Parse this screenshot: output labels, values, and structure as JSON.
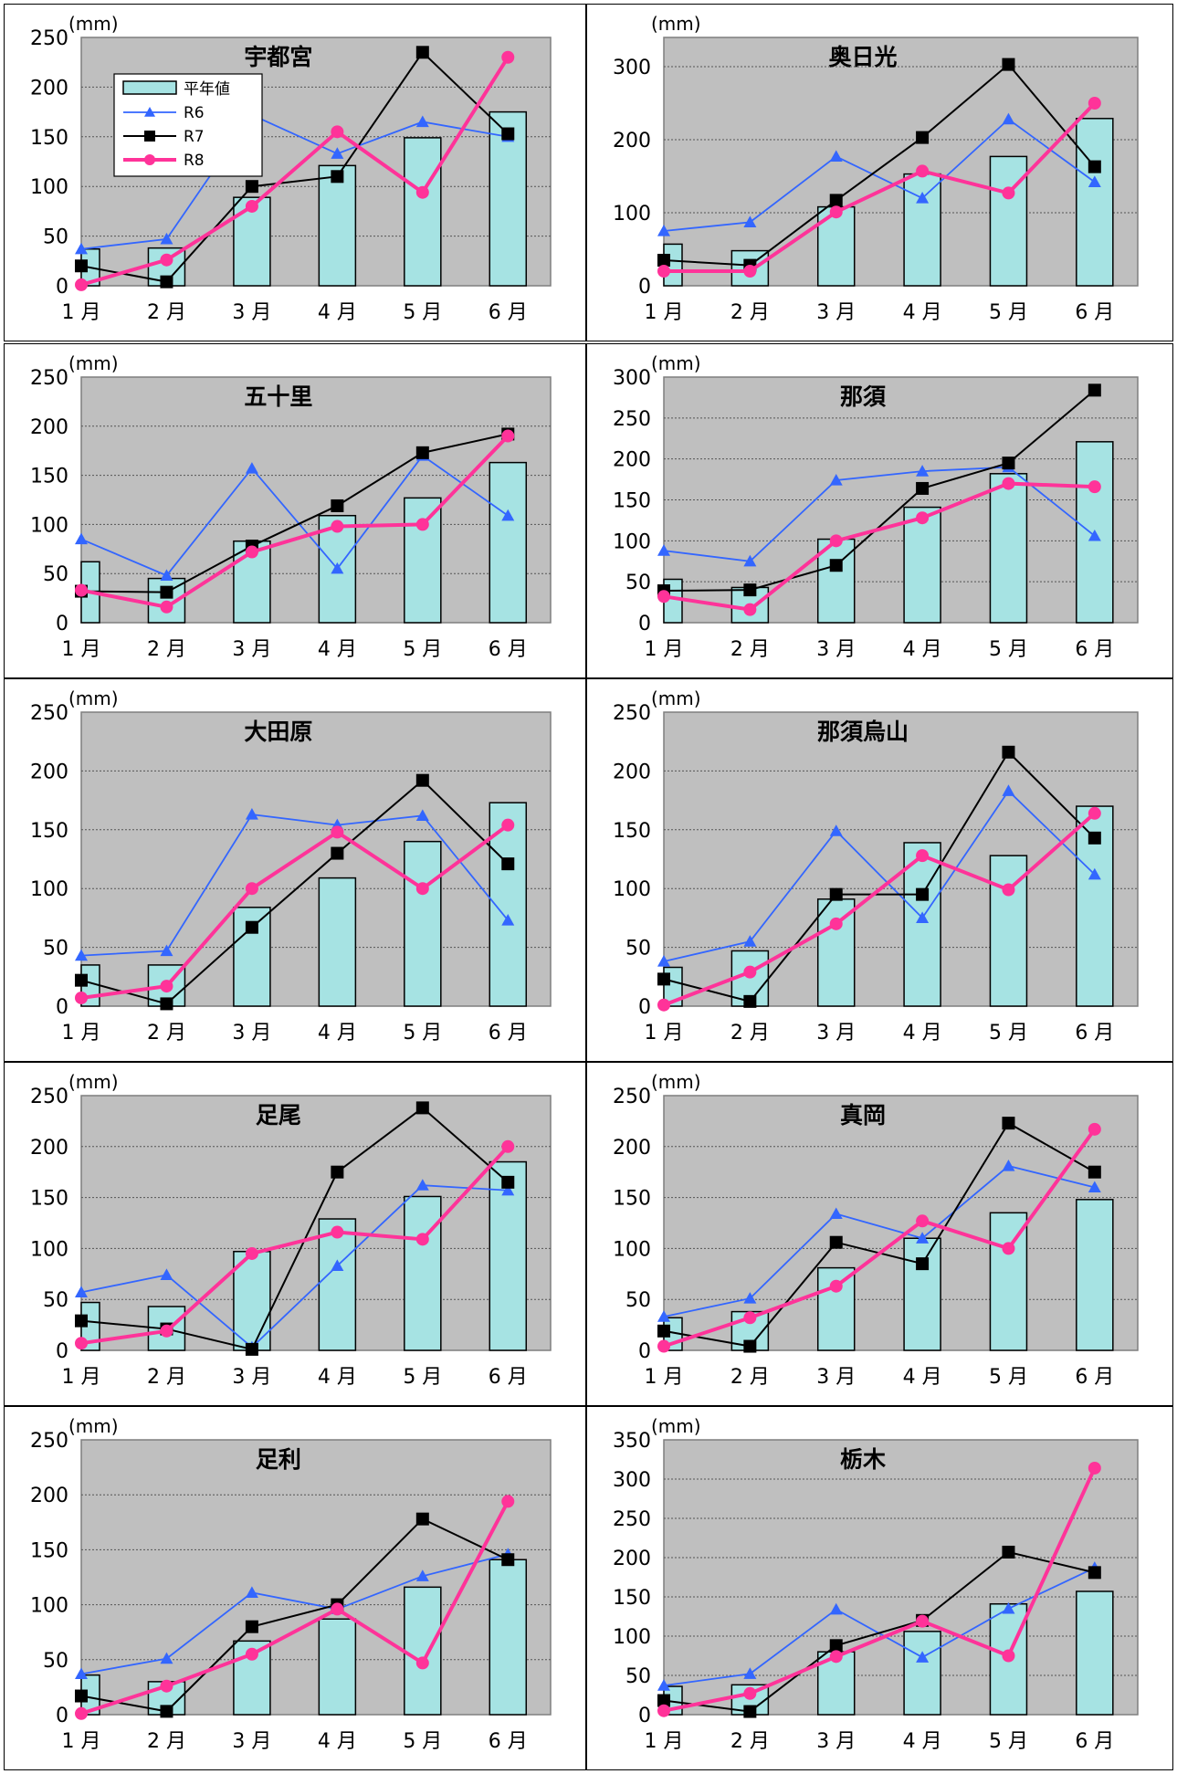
{
  "unit_label": "(mm)",
  "legend": {
    "avg": "平年値",
    "r6": "R6",
    "r7": "R7",
    "r8": "R8"
  },
  "colors": {
    "avg_fill": "#a6e3e3",
    "r6": "#3366ff",
    "r7": "#000000",
    "r8": "#ff3399",
    "plot_bg": "#bfbfbf"
  },
  "chart_data": [
    {
      "type": "bar",
      "title": "宇都宮",
      "categories": [
        "1 月",
        "2 月",
        "3 月",
        "4 月",
        "5 月",
        "6 月"
      ],
      "ylim": [
        0,
        250
      ],
      "yticks": [
        0,
        50,
        100,
        150,
        200,
        250
      ],
      "series": [
        {
          "name": "平年値",
          "kind": "bar",
          "values": [
            37,
            38,
            89,
            121,
            149,
            175
          ]
        },
        {
          "name": "R6",
          "kind": "line",
          "marker": "triangle",
          "values": [
            37,
            47,
            172,
            133,
            165,
            150
          ]
        },
        {
          "name": "R7",
          "kind": "line",
          "marker": "square",
          "values": [
            20,
            4,
            100,
            110,
            235,
            153
          ]
        },
        {
          "name": "R8",
          "kind": "line",
          "marker": "circle",
          "values": [
            1,
            26,
            80,
            155,
            94,
            230
          ]
        }
      ]
    },
    {
      "type": "bar",
      "title": "奥日光",
      "categories": [
        "1 月",
        "2 月",
        "3 月",
        "4 月",
        "5 月",
        "6 月"
      ],
      "ylim": [
        0,
        340
      ],
      "yticks": [
        0,
        100,
        200,
        300
      ],
      "series": [
        {
          "name": "平年値",
          "kind": "bar",
          "values": [
            57,
            48,
            108,
            153,
            177,
            229
          ]
        },
        {
          "name": "R6",
          "kind": "line",
          "marker": "triangle",
          "values": [
            75,
            87,
            177,
            120,
            228,
            142
          ]
        },
        {
          "name": "R7",
          "kind": "line",
          "marker": "square",
          "values": [
            35,
            28,
            117,
            203,
            303,
            163
          ]
        },
        {
          "name": "R8",
          "kind": "line",
          "marker": "circle",
          "values": [
            20,
            20,
            101,
            157,
            127,
            250
          ]
        }
      ]
    },
    {
      "type": "bar",
      "title": "五十里",
      "categories": [
        "1 月",
        "2 月",
        "3 月",
        "4 月",
        "5 月",
        "6 月"
      ],
      "ylim": [
        0,
        250
      ],
      "yticks": [
        0,
        50,
        100,
        150,
        200,
        250
      ],
      "series": [
        {
          "name": "平年値",
          "kind": "bar",
          "values": [
            62,
            45,
            83,
            109,
            127,
            163
          ]
        },
        {
          "name": "R6",
          "kind": "line",
          "marker": "triangle",
          "values": [
            85,
            48,
            157,
            55,
            170,
            109
          ]
        },
        {
          "name": "R7",
          "kind": "line",
          "marker": "square",
          "values": [
            32,
            31,
            78,
            119,
            173,
            192
          ]
        },
        {
          "name": "R8",
          "kind": "line",
          "marker": "circle",
          "values": [
            33,
            16,
            72,
            98,
            100,
            190
          ]
        }
      ]
    },
    {
      "type": "bar",
      "title": "那須",
      "categories": [
        "1 月",
        "2 月",
        "3 月",
        "4 月",
        "5 月",
        "6 月"
      ],
      "ylim": [
        0,
        300
      ],
      "yticks": [
        0,
        50,
        100,
        150,
        200,
        250,
        300
      ],
      "series": [
        {
          "name": "平年値",
          "kind": "bar",
          "values": [
            53,
            43,
            102,
            141,
            182,
            221
          ]
        },
        {
          "name": "R6",
          "kind": "line",
          "marker": "triangle",
          "values": [
            88,
            75,
            174,
            185,
            190,
            106
          ]
        },
        {
          "name": "R7",
          "kind": "line",
          "marker": "square",
          "values": [
            39,
            40,
            70,
            164,
            195,
            284
          ]
        },
        {
          "name": "R8",
          "kind": "line",
          "marker": "circle",
          "values": [
            32,
            16,
            100,
            128,
            170,
            166
          ]
        }
      ]
    },
    {
      "type": "bar",
      "title": "大田原",
      "categories": [
        "1 月",
        "2 月",
        "3 月",
        "4 月",
        "5 月",
        "6 月"
      ],
      "ylim": [
        0,
        250
      ],
      "yticks": [
        0,
        50,
        100,
        150,
        200,
        250
      ],
      "series": [
        {
          "name": "平年値",
          "kind": "bar",
          "values": [
            35,
            35,
            84,
            109,
            140,
            173
          ]
        },
        {
          "name": "R6",
          "kind": "line",
          "marker": "triangle",
          "values": [
            43,
            47,
            163,
            154,
            162,
            73
          ]
        },
        {
          "name": "R7",
          "kind": "line",
          "marker": "square",
          "values": [
            22,
            2,
            67,
            130,
            192,
            121
          ]
        },
        {
          "name": "R8",
          "kind": "line",
          "marker": "circle",
          "values": [
            7,
            17,
            100,
            148,
            100,
            154
          ]
        }
      ]
    },
    {
      "type": "bar",
      "title": "那須烏山",
      "categories": [
        "1 月",
        "2 月",
        "3 月",
        "4 月",
        "5 月",
        "6 月"
      ],
      "ylim": [
        0,
        250
      ],
      "yticks": [
        0,
        50,
        100,
        150,
        200,
        250
      ],
      "series": [
        {
          "name": "平年値",
          "kind": "bar",
          "values": [
            33,
            47,
            91,
            139,
            128,
            170
          ]
        },
        {
          "name": "R6",
          "kind": "line",
          "marker": "triangle",
          "values": [
            38,
            55,
            149,
            75,
            183,
            112
          ]
        },
        {
          "name": "R7",
          "kind": "line",
          "marker": "square",
          "values": [
            23,
            4,
            95,
            95,
            216,
            143
          ]
        },
        {
          "name": "R8",
          "kind": "line",
          "marker": "circle",
          "values": [
            1,
            29,
            70,
            128,
            99,
            164
          ]
        }
      ]
    },
    {
      "type": "bar",
      "title": "足尾",
      "categories": [
        "1 月",
        "2 月",
        "3 月",
        "4 月",
        "5 月",
        "6 月"
      ],
      "ylim": [
        0,
        250
      ],
      "yticks": [
        0,
        50,
        100,
        150,
        200,
        250
      ],
      "series": [
        {
          "name": "平年値",
          "kind": "bar",
          "values": [
            47,
            43,
            97,
            129,
            151,
            185
          ]
        },
        {
          "name": "R6",
          "kind": "line",
          "marker": "triangle",
          "values": [
            57,
            74,
            3,
            83,
            162,
            157
          ]
        },
        {
          "name": "R7",
          "kind": "line",
          "marker": "square",
          "values": [
            29,
            21,
            1,
            175,
            238,
            165
          ]
        },
        {
          "name": "R8",
          "kind": "line",
          "marker": "circle",
          "values": [
            7,
            19,
            95,
            116,
            109,
            200
          ]
        }
      ]
    },
    {
      "type": "bar",
      "title": "真岡",
      "categories": [
        "1 月",
        "2 月",
        "3 月",
        "4 月",
        "5 月",
        "6 月"
      ],
      "ylim": [
        0,
        250
      ],
      "yticks": [
        0,
        50,
        100,
        150,
        200,
        250
      ],
      "series": [
        {
          "name": "平年値",
          "kind": "bar",
          "values": [
            32,
            38,
            81,
            110,
            135,
            148
          ]
        },
        {
          "name": "R6",
          "kind": "line",
          "marker": "triangle",
          "values": [
            33,
            51,
            134,
            110,
            181,
            160
          ]
        },
        {
          "name": "R7",
          "kind": "line",
          "marker": "square",
          "values": [
            19,
            4,
            106,
            85,
            223,
            175
          ]
        },
        {
          "name": "R8",
          "kind": "line",
          "marker": "circle",
          "values": [
            4,
            32,
            63,
            127,
            100,
            217
          ]
        }
      ]
    },
    {
      "type": "bar",
      "title": "足利",
      "categories": [
        "1 月",
        "2 月",
        "3 月",
        "4 月",
        "5 月",
        "6 月"
      ],
      "ylim": [
        0,
        250
      ],
      "yticks": [
        0,
        50,
        100,
        150,
        200,
        250
      ],
      "series": [
        {
          "name": "平年値",
          "kind": "bar",
          "values": [
            36,
            30,
            67,
            87,
            116,
            141
          ]
        },
        {
          "name": "R6",
          "kind": "line",
          "marker": "triangle",
          "values": [
            37,
            51,
            111,
            96,
            126,
            146
          ]
        },
        {
          "name": "R7",
          "kind": "line",
          "marker": "square",
          "values": [
            17,
            3,
            80,
            100,
            178,
            141
          ]
        },
        {
          "name": "R8",
          "kind": "line",
          "marker": "circle",
          "values": [
            1,
            26,
            55,
            96,
            47,
            194
          ]
        }
      ]
    },
    {
      "type": "bar",
      "title": "栃木",
      "categories": [
        "1 月",
        "2 月",
        "3 月",
        "4 月",
        "5 月",
        "6 月"
      ],
      "ylim": [
        0,
        350
      ],
      "yticks": [
        0,
        50,
        100,
        150,
        200,
        250,
        300,
        350
      ],
      "series": [
        {
          "name": "平年値",
          "kind": "bar",
          "values": [
            36,
            38,
            80,
            106,
            141,
            157
          ]
        },
        {
          "name": "R6",
          "kind": "line",
          "marker": "triangle",
          "values": [
            37,
            52,
            134,
            73,
            135,
            187
          ]
        },
        {
          "name": "R7",
          "kind": "line",
          "marker": "square",
          "values": [
            18,
            4,
            88,
            120,
            207,
            181
          ]
        },
        {
          "name": "R8",
          "kind": "line",
          "marker": "circle",
          "values": [
            5,
            27,
            74,
            119,
            75,
            314
          ]
        }
      ]
    }
  ]
}
